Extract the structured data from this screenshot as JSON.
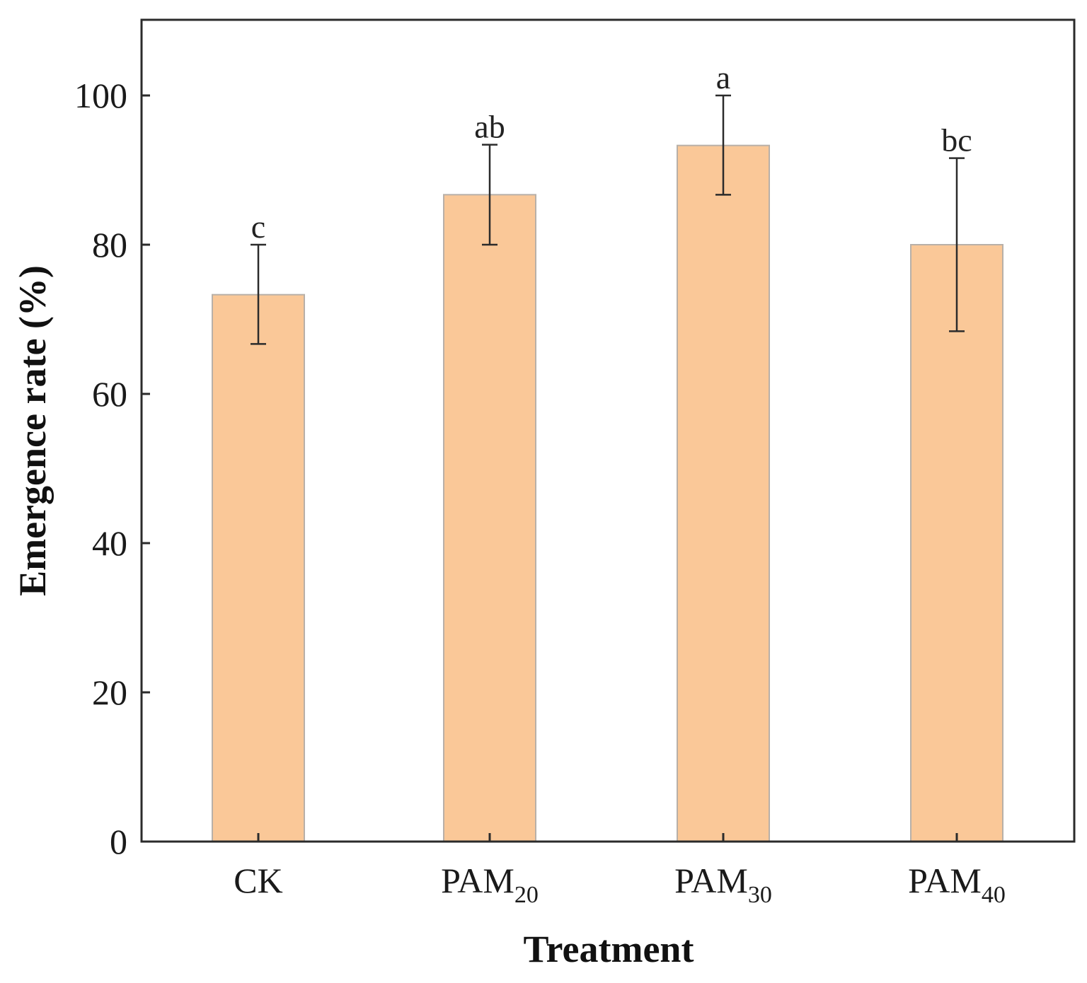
{
  "chart_data": {
    "type": "bar",
    "title": "",
    "xlabel": "Treatment",
    "ylabel": "Emergence rate (%)",
    "ylim": [
      0,
      110
    ],
    "yticks": [
      0,
      20,
      40,
      60,
      80,
      100
    ],
    "ytick_labels": [
      "0",
      "20",
      "40",
      "60",
      "80",
      "100"
    ],
    "categories": [
      {
        "base": "CK",
        "sub": ""
      },
      {
        "base": "PAM",
        "sub": "20"
      },
      {
        "base": "PAM",
        "sub": "30"
      },
      {
        "base": "PAM",
        "sub": "40"
      }
    ],
    "values": [
      73.3,
      86.7,
      93.3,
      80.0
    ],
    "error_low": [
      66.7,
      80.0,
      86.7,
      68.4
    ],
    "error_high": [
      80.0,
      93.4,
      100.0,
      91.6
    ],
    "significance_letters": [
      "c",
      "ab",
      "a",
      "bc"
    ],
    "bar_color": "#FAC898",
    "bar_edge_color": "#B8B0A8"
  }
}
